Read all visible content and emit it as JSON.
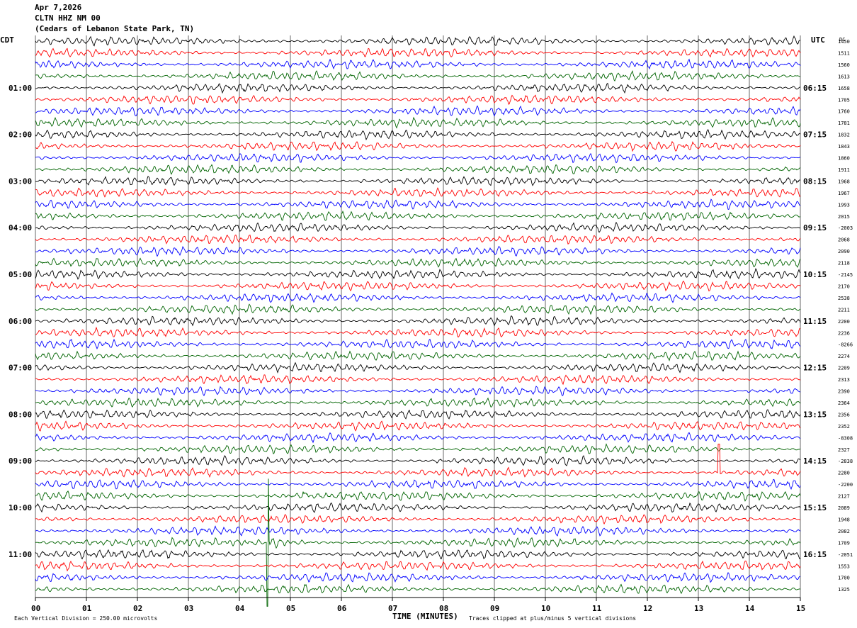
{
  "header": {
    "date": "Apr 7,2026",
    "station": "CLTN HHZ NM 00",
    "location": "(Cedars of Lebanon State Park, TN)"
  },
  "labels": {
    "left_tz": "CDT",
    "right_tz": "UTC",
    "right_col": "DC",
    "xlabel": "TIME (MINUTES)",
    "scale_note": "Each Vertical Division =  250.00 microvolts",
    "clip_note": "Traces clipped at plus/minus 5 vertical divisions"
  },
  "colors": {
    "trace_cycle": [
      "#000000",
      "#ff0000",
      "#0000ff",
      "#006400"
    ],
    "grid": "#000000"
  },
  "chart_data": {
    "type": "line",
    "title": "",
    "xlabel": "TIME (MINUTES)",
    "x_ticks": [
      "00",
      "01",
      "02",
      "03",
      "04",
      "05",
      "06",
      "07",
      "08",
      "09",
      "10",
      "11",
      "12",
      "13",
      "14",
      "15"
    ],
    "xlim": [
      0,
      15
    ],
    "left_times": [
      "01:00",
      "02:00",
      "03:00",
      "04:00",
      "05:00",
      "06:00",
      "07:00",
      "08:00",
      "09:00",
      "10:00",
      "11:00"
    ],
    "right_times": [
      "06:15",
      "07:15",
      "08:15",
      "09:15",
      "10:15",
      "11:15",
      "12:15",
      "13:15",
      "14:15",
      "15:15",
      "16:15"
    ],
    "dc_values": [
      "1450",
      "1511",
      "1560",
      "1613",
      "1658",
      "1705",
      "1760",
      "1781",
      "1832",
      "1843",
      "1860",
      "1911",
      "1968",
      "1967",
      "1993",
      "2015",
      "-2003",
      "2068",
      "2090",
      "2118",
      "-2145",
      "2170",
      "2538",
      "2211",
      "2200",
      "2236",
      "-8266",
      "2274",
      "2209",
      "2313",
      "2390",
      "2364",
      "2356",
      "2352",
      "-8308",
      "2327",
      "-2838",
      "2280",
      "-2200",
      "2127",
      "2089",
      "1948",
      "2082",
      "1709",
      "-2051",
      "1553",
      "1700",
      "1325"
    ],
    "trace_count": 48,
    "events": [
      {
        "trace": 43,
        "minute": 4.55,
        "type": "large spike"
      },
      {
        "trace": 40,
        "minute": 3.1,
        "type": "burst"
      },
      {
        "trace": 39,
        "minute": 5.3,
        "type": "burst"
      },
      {
        "trace": 37,
        "minute": 13.4,
        "type": "spike"
      }
    ]
  }
}
